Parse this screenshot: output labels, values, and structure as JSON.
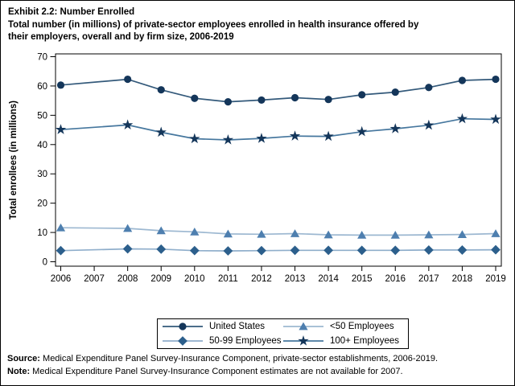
{
  "title": {
    "line1": "Exhibit 2.2: Number Enrolled",
    "line2": "Total number (in millions) of private-sector employees enrolled in health insurance offered by",
    "line3": "their employers, overall and by firm size, 2006-2019"
  },
  "chart_data": {
    "type": "line",
    "title": "Exhibit 2.2: Number Enrolled",
    "subtitle": "Total number (in millions) of private-sector employees enrolled in health insurance offered by their employers, overall and by firm size, 2006-2019",
    "xlabel": "",
    "ylabel": "Total enrollees (in millions)",
    "ylim": [
      0,
      70
    ],
    "yticks": [
      0,
      10,
      20,
      30,
      40,
      50,
      60,
      70
    ],
    "grid": false,
    "legend_position": "bottom-center",
    "missing_data_note": "2007 values not available; lines connect 2006 to 2008",
    "categories": [
      "2006",
      "2007",
      "2008",
      "2009",
      "2010",
      "2011",
      "2012",
      "2013",
      "2014",
      "2015",
      "2016",
      "2017",
      "2018",
      "2019"
    ],
    "series": [
      {
        "name": "United States",
        "marker": "circle",
        "marker_color": "#14365A",
        "line_color": "#33597A",
        "values": [
          60.3,
          null,
          62.3,
          58.7,
          55.8,
          54.6,
          55.2,
          56.0,
          55.4,
          57.0,
          57.9,
          59.5,
          61.9,
          62.3
        ]
      },
      {
        "name": "<50 Employees",
        "marker": "triangle",
        "marker_color": "#4E7FAF",
        "line_color": "#9DB8D1",
        "values": [
          11.6,
          null,
          11.4,
          10.6,
          10.2,
          9.5,
          9.4,
          9.6,
          9.2,
          9.1,
          9.1,
          9.2,
          9.3,
          9.6
        ]
      },
      {
        "name": "50-99 Employees",
        "marker": "diamond",
        "marker_color": "#2C5F8C",
        "line_color": "#8FAECB",
        "values": [
          3.8,
          null,
          4.4,
          4.3,
          3.8,
          3.7,
          3.8,
          3.9,
          3.9,
          3.9,
          3.9,
          4.0,
          4.0,
          4.1
        ]
      },
      {
        "name": "100+ Employees",
        "marker": "star",
        "marker_color": "#14365A",
        "line_color": "#46779E",
        "values": [
          45.1,
          null,
          46.7,
          44.2,
          42.0,
          41.6,
          42.1,
          42.9,
          42.8,
          44.4,
          45.4,
          46.6,
          48.8,
          48.6
        ]
      }
    ]
  },
  "legend": {
    "order": [
      "United States",
      "<50 Employees",
      "50-99 Employees",
      "100+ Employees"
    ]
  },
  "footer": {
    "source_label": "Source:",
    "source_text": " Medical Expenditure Panel Survey-Insurance Component, private-sector establishments, 2006-2019.",
    "note_label": "Note:",
    "note_text": " Medical Expenditure Panel Survey-Insurance Component estimates are not available for 2007."
  }
}
